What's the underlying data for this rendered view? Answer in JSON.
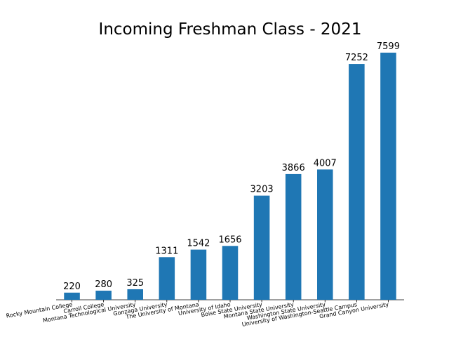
{
  "chart_data": {
    "type": "bar",
    "title": "Incoming Freshman Class - 2021",
    "xlabel": "",
    "ylabel": "",
    "categories": [
      "Rocky Mountain College",
      "Carroll College",
      "Montana Technological University",
      "Gonzaga University",
      "The University of Montana",
      "University of Idaho",
      "Boise State University",
      "Montana State University",
      "Washington State University",
      "University of Washington-Seattle Campus",
      "Grand Canyon University"
    ],
    "values": [
      220,
      280,
      325,
      1311,
      1542,
      1656,
      3203,
      3866,
      4007,
      7252,
      7599
    ],
    "ylim": [
      0,
      7599
    ],
    "bar_color": "#1f77b4",
    "grid": false,
    "y_axis_visible": false,
    "value_labels": true
  }
}
